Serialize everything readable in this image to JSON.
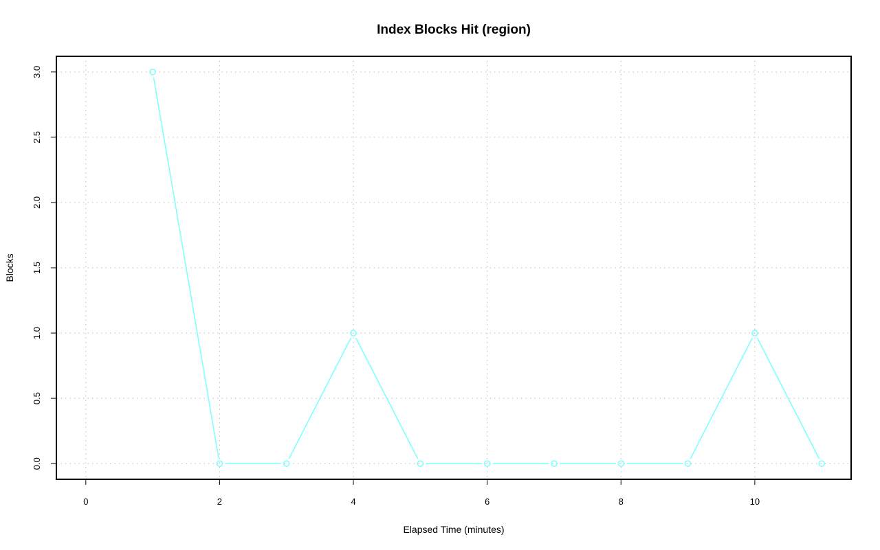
{
  "chart_data": {
    "type": "line",
    "title": "Index Blocks Hit (region)",
    "xlabel": "Elapsed Time (minutes)",
    "ylabel": "Blocks",
    "x": [
      1,
      2,
      3,
      4,
      5,
      6,
      7,
      8,
      9,
      10,
      11
    ],
    "series": [
      {
        "values": [
          3,
          0,
          0,
          1,
          0,
          0,
          0,
          0,
          0,
          1,
          0
        ],
        "color": "#80ffff"
      }
    ],
    "xlim": [
      -0.44,
      11.44
    ],
    "ylim": [
      -0.12,
      3.12
    ],
    "xticks": [
      0,
      2,
      4,
      6,
      8,
      10
    ],
    "xtick_labels": [
      "0",
      "2",
      "4",
      "6",
      "8",
      "10"
    ],
    "yticks": [
      0,
      0.5,
      1,
      1.5,
      2,
      2.5,
      3
    ],
    "ytick_labels": [
      "0.0",
      "0.5",
      "1.0",
      "1.5",
      "2.0",
      "2.5",
      "3.0"
    ],
    "grid": true,
    "grid_style": "dotted",
    "marker": "open-circle"
  }
}
